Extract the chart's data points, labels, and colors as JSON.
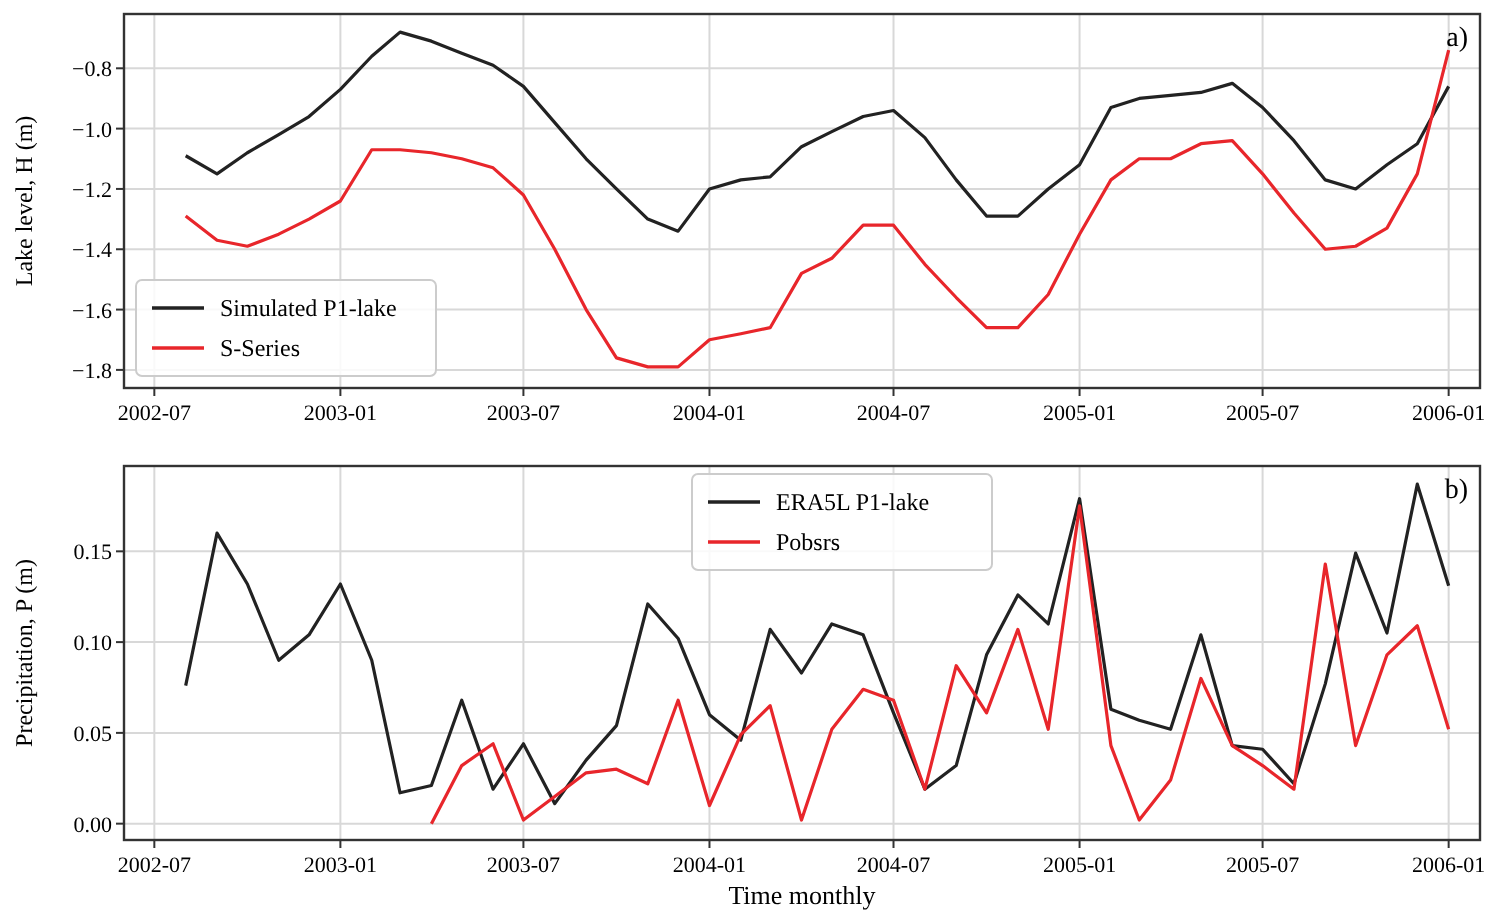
{
  "chart_data": [
    {
      "type": "line",
      "ylabel": "Lake level, H (m)",
      "annotations": [
        "a)"
      ],
      "grid": true,
      "legend": "bottom left",
      "line_style": "solid",
      "marker": "none",
      "x": [
        "2002-08",
        "2002-09",
        "2002-10",
        "2002-11",
        "2002-12",
        "2003-01",
        "2003-02",
        "2003-03",
        "2003-04",
        "2003-05",
        "2003-06",
        "2003-07",
        "2003-08",
        "2003-09",
        "2003-10",
        "2003-11",
        "2003-12",
        "2004-01",
        "2004-02",
        "2004-03",
        "2004-04",
        "2004-05",
        "2004-06",
        "2004-07",
        "2004-08",
        "2004-09",
        "2004-10",
        "2004-11",
        "2004-12",
        "2005-01",
        "2005-02",
        "2005-03",
        "2005-04",
        "2005-05",
        "2005-06",
        "2005-07",
        "2005-08",
        "2005-09",
        "2005-10",
        "2005-11",
        "2005-12",
        "2006-01"
      ],
      "xlim": [
        "2002-06",
        "2006-02"
      ],
      "xticks": [
        "2002-07",
        "2003-01",
        "2003-07",
        "2004-01",
        "2004-07",
        "2005-01",
        "2005-07",
        "2006-01"
      ],
      "ylim": [
        -1.86,
        -0.62
      ],
      "yticks": [
        {
          "value": -1.8,
          "label": "−1.8"
        },
        {
          "value": -1.6,
          "label": "−1.6"
        },
        {
          "value": -1.4,
          "label": "−1.4"
        },
        {
          "value": -1.2,
          "label": "−1.2"
        },
        {
          "value": -1.0,
          "label": "−1.0"
        },
        {
          "value": -0.8,
          "label": "−0.8"
        }
      ],
      "series": [
        {
          "name": "Simulated P1-lake",
          "color": "#222222",
          "values": [
            -1.09,
            -1.15,
            -1.08,
            -1.02,
            -0.96,
            -0.87,
            -0.76,
            -0.68,
            -0.71,
            -0.75,
            -0.79,
            -0.86,
            -0.98,
            -1.1,
            -1.2,
            -1.3,
            -1.34,
            -1.2,
            -1.17,
            -1.16,
            -1.06,
            -1.01,
            -0.96,
            -0.94,
            -1.03,
            -1.17,
            -1.29,
            -1.29,
            -1.2,
            -1.12,
            -0.93,
            -0.9,
            -0.89,
            -0.88,
            -0.85,
            -0.93,
            -1.04,
            -1.17,
            -1.2,
            -1.12,
            -1.05,
            -0.86
          ]
        },
        {
          "name": "S-Series",
          "color": "#e8262b",
          "values": [
            -1.29,
            -1.37,
            -1.39,
            -1.35,
            -1.3,
            -1.24,
            -1.07,
            -1.07,
            -1.08,
            -1.1,
            -1.13,
            -1.22,
            -1.4,
            -1.6,
            -1.76,
            -1.79,
            -1.79,
            -1.7,
            -1.68,
            -1.66,
            -1.48,
            -1.43,
            -1.32,
            -1.32,
            -1.45,
            -1.56,
            -1.66,
            -1.66,
            -1.55,
            -1.35,
            -1.17,
            -1.1,
            -1.1,
            -1.05,
            -1.04,
            -1.15,
            -1.28,
            -1.4,
            -1.39,
            -1.33,
            -1.15,
            -0.74
          ]
        }
      ]
    },
    {
      "type": "line",
      "xlabel": "Time monthly",
      "ylabel": "Precipitation, P (m)",
      "annotations": [
        "b)"
      ],
      "grid": true,
      "legend": "top",
      "line_style": "solid",
      "marker": "none",
      "x": [
        "2002-08",
        "2002-09",
        "2002-10",
        "2002-11",
        "2002-12",
        "2003-01",
        "2003-02",
        "2003-03",
        "2003-04",
        "2003-05",
        "2003-06",
        "2003-07",
        "2003-08",
        "2003-09",
        "2003-10",
        "2003-11",
        "2003-12",
        "2004-01",
        "2004-02",
        "2004-03",
        "2004-04",
        "2004-05",
        "2004-06",
        "2004-07",
        "2004-08",
        "2004-09",
        "2004-10",
        "2004-11",
        "2004-12",
        "2005-01",
        "2005-02",
        "2005-03",
        "2005-04",
        "2005-05",
        "2005-06",
        "2005-07",
        "2005-08",
        "2005-09",
        "2005-10",
        "2005-11",
        "2005-12",
        "2006-01"
      ],
      "xlim": [
        "2002-06",
        "2006-02"
      ],
      "xticks": [
        "2002-07",
        "2003-01",
        "2003-07",
        "2004-01",
        "2004-07",
        "2005-01",
        "2005-07",
        "2006-01"
      ],
      "ylim": [
        -0.009,
        0.197
      ],
      "yticks": [
        {
          "value": 0,
          "label": "0.00"
        },
        {
          "value": 0.05,
          "label": "0.05"
        },
        {
          "value": 0.1,
          "label": "0.10"
        },
        {
          "value": 0.15,
          "label": "0.15"
        }
      ],
      "series": [
        {
          "name": "ERA5L P1-lake",
          "color": "#222222",
          "values": [
            0.076,
            0.16,
            0.132,
            0.09,
            0.104,
            0.132,
            0.09,
            0.017,
            0.021,
            0.068,
            0.019,
            0.044,
            0.011,
            0.035,
            0.054,
            0.121,
            0.102,
            0.06,
            0.046,
            0.107,
            0.083,
            0.11,
            0.104,
            0.061,
            0.019,
            0.032,
            0.093,
            0.126,
            0.11,
            0.179,
            0.063,
            0.057,
            0.052,
            0.104,
            0.043,
            0.041,
            0.022,
            0.077,
            0.149,
            0.105,
            0.187,
            0.131
          ]
        },
        {
          "name": "Pobsrs",
          "color": "#e8262b",
          "x": [
            "2003-04",
            "2003-05",
            "2003-06",
            "2003-07",
            "2003-08",
            "2003-09",
            "2003-10",
            "2003-11",
            "2003-12",
            "2004-01",
            "2004-02",
            "2004-03",
            "2004-04",
            "2004-05",
            "2004-06",
            "2004-07",
            "2004-08",
            "2004-09",
            "2004-10",
            "2004-11",
            "2004-12",
            "2005-01",
            "2005-02",
            "2005-03",
            "2005-04",
            "2005-05",
            "2005-06",
            "2005-07",
            "2005-08",
            "2005-09",
            "2005-10",
            "2005-11",
            "2005-12",
            "2006-01"
          ],
          "values": [
            0.0,
            0.032,
            0.044,
            0.002,
            0.015,
            0.028,
            0.03,
            0.022,
            0.068,
            0.01,
            0.049,
            0.065,
            0.002,
            0.052,
            0.074,
            0.068,
            0.019,
            0.087,
            0.061,
            0.107,
            0.052,
            0.175,
            0.043,
            0.002,
            0.024,
            0.08,
            0.043,
            0.032,
            0.019,
            0.143,
            0.043,
            0.093,
            0.109,
            0.052
          ]
        }
      ]
    }
  ]
}
